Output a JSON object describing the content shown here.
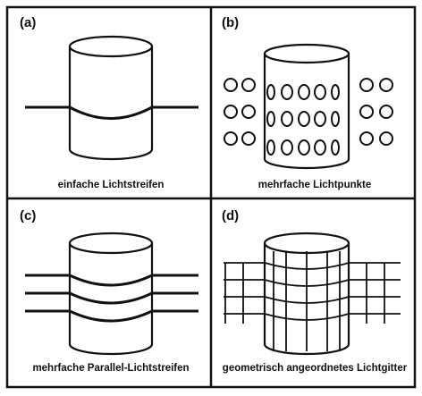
{
  "panels": [
    {
      "label": "(a)",
      "caption": "einfache Lichtstreifen"
    },
    {
      "label": "(b)",
      "caption": "mehrfache Lichtpunkte"
    },
    {
      "label": "(c)",
      "caption": "mehrfache Parallel-Lichtstreifen"
    },
    {
      "label": "(d)",
      "caption": "geometrisch angeordnetes Lichtgitter"
    }
  ],
  "colors": {
    "ink": "#111111",
    "background": "#ffffff"
  }
}
